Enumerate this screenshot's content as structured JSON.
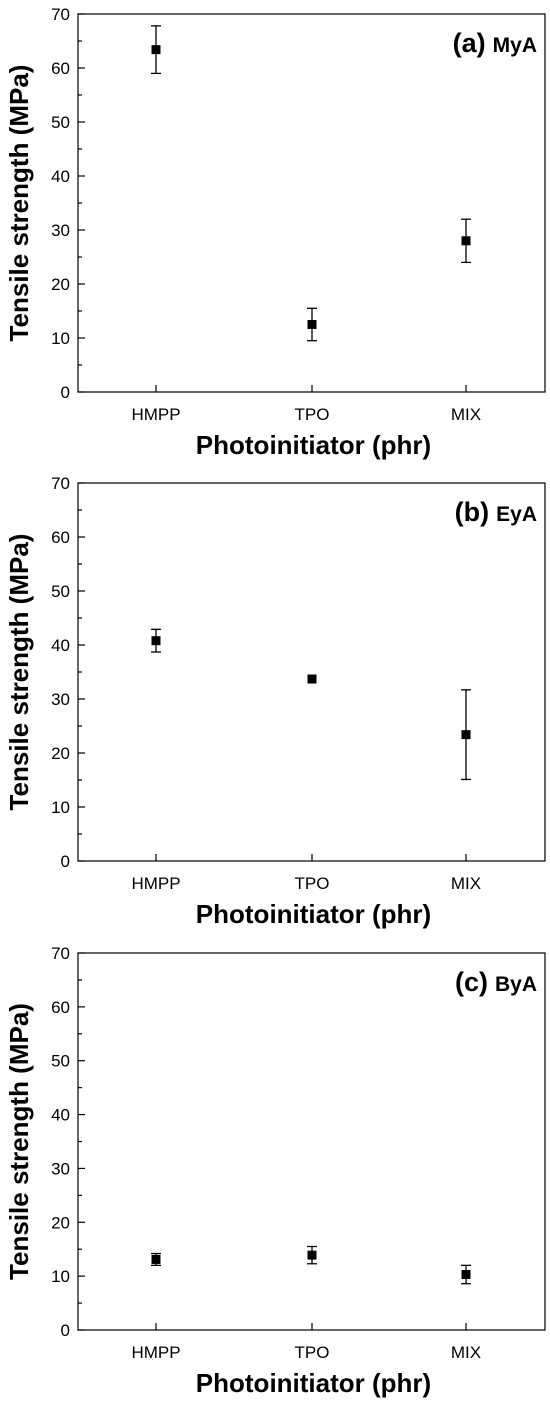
{
  "chart_data": [
    {
      "type": "scatter",
      "panel_label": "(a)",
      "panel_name": "MyA",
      "xlabel": "Photoinitiator (phr)",
      "ylabel": "Tensile strength (MPa)",
      "categories": [
        "HMPP",
        "TPO",
        "MIX"
      ],
      "values": [
        63.4,
        12.5,
        28.0
      ],
      "errors": [
        4.4,
        3.0,
        4.0
      ],
      "ylim": [
        0,
        70
      ],
      "yticks": [
        "0",
        "10",
        "20",
        "30",
        "40",
        "50",
        "60",
        "70"
      ],
      "grid": false
    },
    {
      "type": "scatter",
      "panel_label": "(b)",
      "panel_name": "EyA",
      "xlabel": "Photoinitiator (phr)",
      "ylabel": "Tensile strength (MPa)",
      "categories": [
        "HMPP",
        "TPO",
        "MIX"
      ],
      "values": [
        40.8,
        33.7,
        23.4
      ],
      "errors": [
        2.1,
        0.2,
        8.3
      ],
      "ylim": [
        0,
        70
      ],
      "yticks": [
        "0",
        "10",
        "20",
        "30",
        "40",
        "50",
        "60",
        "70"
      ],
      "grid": false
    },
    {
      "type": "scatter",
      "panel_label": "(c)",
      "panel_name": "ByA",
      "xlabel": "Photoinitiator (phr)",
      "ylabel": "Tensile strength (MPa)",
      "categories": [
        "HMPP",
        "TPO",
        "MIX"
      ],
      "values": [
        13.1,
        13.9,
        10.3
      ],
      "errors": [
        1.1,
        1.6,
        1.7
      ],
      "ylim": [
        0,
        70
      ],
      "yticks": [
        "0",
        "10",
        "20",
        "30",
        "40",
        "50",
        "60",
        "70"
      ],
      "grid": false
    }
  ]
}
